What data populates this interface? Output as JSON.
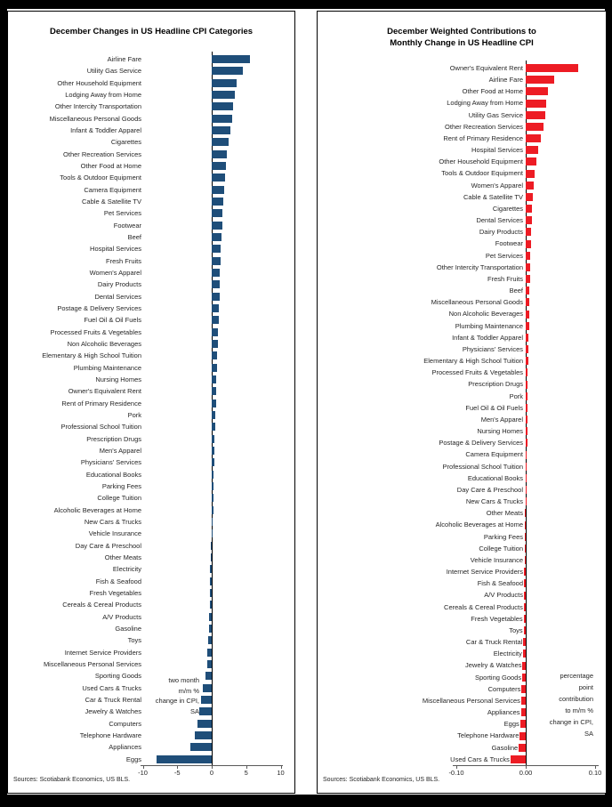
{
  "page": {
    "background_color": "#000000",
    "canvas_color": "#ffffff"
  },
  "chart_data": [
    {
      "type": "bar",
      "orientation": "horizontal",
      "title_lines": [
        "December Changes in US Headline CPI Categories"
      ],
      "bar_color": "#1f4e79",
      "xlim": [
        -10,
        10
      ],
      "x_ticks": [
        {
          "value": -10,
          "label": "-10"
        },
        {
          "value": -5,
          "label": "-5"
        },
        {
          "value": 0,
          "label": "0"
        },
        {
          "value": 5,
          "label": "5"
        },
        {
          "value": 10,
          "label": "10"
        }
      ],
      "annotation_lines": [
        "two month",
        "m/m %",
        "change in CPI,",
        "SA"
      ],
      "sources": "Sources: Scotiabank Economics, US BLS.",
      "categories": [
        "Airline Fare",
        "Utility Gas Service",
        "Other Household Equipment",
        "Lodging Away from Home",
        "Other Intercity Transportation",
        "Miscellaneous Personal Goods",
        "Infant & Toddler Apparel",
        "Cigarettes",
        "Other Recreation Services",
        "Other Food at Home",
        "Tools & Outdoor Equipment",
        "Camera Equipment",
        "Cable & Satellite TV",
        "Pet Services",
        "Footwear",
        "Beef",
        "Hospital Services",
        "Fresh Fruits",
        "Women's Apparel",
        "Dairy Products",
        "Dental Services",
        "Postage & Delivery Services",
        "Fuel Oil & Oil Fuels",
        "Processed Fruits & Vegetables",
        "Non Alcoholic Beverages",
        "Elementary & High School Tuition",
        "Plumbing Maintenance",
        "Nursing Homes",
        "Owner's Equivalent Rent",
        "Rent of Primary Residence",
        "Pork",
        "Professional School Tuition",
        "Prescription Drugs",
        "Men's Apparel",
        "Physicians' Services",
        "Educational Books",
        "Parking Fees",
        "College Tuition",
        "Alcoholic Beverages at Home",
        "New Cars & Trucks",
        "Vehicle Insurance",
        "Day Care & Preschool",
        "Other Meats",
        "Electricity",
        "Fish & Seafood",
        "Fresh Vegetables",
        "Cereals & Cereal Products",
        "A/V Products",
        "Gasoline",
        "Toys",
        "Internet Service Providers",
        "Miscellaneous Personal Services",
        "Sporting Goods",
        "Used Cars & Trucks",
        "Car & Truck Rental",
        "Jewelry & Watches",
        "Computers",
        "Telephone Hardware",
        "Appliances",
        "Eggs"
      ],
      "values": [
        5.5,
        4.5,
        3.6,
        3.3,
        3.1,
        3.0,
        2.7,
        2.4,
        2.2,
        2.0,
        1.9,
        1.8,
        1.7,
        1.55,
        1.5,
        1.4,
        1.35,
        1.3,
        1.2,
        1.15,
        1.1,
        1.05,
        1.0,
        0.95,
        0.9,
        0.8,
        0.75,
        0.7,
        0.65,
        0.6,
        0.55,
        0.5,
        0.45,
        0.4,
        0.35,
        0.3,
        0.28,
        0.25,
        0.2,
        0.15,
        0.1,
        -0.1,
        -0.15,
        -0.2,
        -0.25,
        -0.28,
        -0.3,
        -0.4,
        -0.45,
        -0.5,
        -0.6,
        -0.7,
        -0.9,
        -1.3,
        -1.5,
        -1.8,
        -2.1,
        -2.5,
        -3.1,
        -8.0
      ]
    },
    {
      "type": "bar",
      "orientation": "horizontal",
      "title_lines": [
        "December Weighted Contributions to",
        "Monthly Change in US Headline CPI"
      ],
      "bar_color": "#ed1c24",
      "xlim": [
        -0.1,
        0.1
      ],
      "x_ticks": [
        {
          "value": -0.1,
          "label": "-0.10"
        },
        {
          "value": 0,
          "label": "0.00"
        },
        {
          "value": 0.1,
          "label": "0.10"
        }
      ],
      "annotation_lines": [
        "percentage",
        "point",
        "contribution",
        "to m/m %",
        "change in CPI,",
        "SA"
      ],
      "sources": "Sources: Scotiabank Economics, US BLS.",
      "categories": [
        "Owner's Equivalent Rent",
        "Airline Fare",
        "Other Food at Home",
        "Lodging Away from Home",
        "Utility Gas Service",
        "Other Recreation Services",
        "Rent of Primary Residence",
        "Hospital Services",
        "Other Household Equipment",
        "Tools & Outdoor Equipment",
        "Women's Apparel",
        "Cable & Satellite TV",
        "Cigarettes",
        "Dental Services",
        "Dairy Products",
        "Footwear",
        "Pet Services",
        "Other Intercity Transportation",
        "Fresh Fruits",
        "Beef",
        "Miscellaneous Personal Goods",
        "Non Alcoholic Beverages",
        "Plumbing Maintenance",
        "Infant & Toddler Apparel",
        "Physicians' Services",
        "Elementary & High School Tuition",
        "Processed Fruits & Vegetables",
        "Prescription Drugs",
        "Pork",
        "Fuel Oil & Oil Fuels",
        "Men's Apparel",
        "Nursing Homes",
        "Postage & Delivery Services",
        "Camera Equipment",
        "Professional School Tuition",
        "Educational Books",
        "Day Care & Preschool",
        "New Cars & Trucks",
        "Other Meats",
        "Alcoholic Beverages at Home",
        "Parking Fees",
        "College Tuition",
        "Vehicle Insurance",
        "Internet Service Providers",
        "Fish & Seafood",
        "A/V Products",
        "Cereals & Cereal Products",
        "Fresh Vegetables",
        "Toys",
        "Car & Truck Rental",
        "Electricity",
        "Jewelry & Watches",
        "Sporting Goods",
        "Computers",
        "Miscellaneous Personal Services",
        "Appliances",
        "Eggs",
        "Telephone Hardware",
        "Gasoline",
        "Used Cars & Trucks"
      ],
      "values": [
        0.075,
        0.041,
        0.032,
        0.029,
        0.028,
        0.026,
        0.022,
        0.018,
        0.015,
        0.013,
        0.011,
        0.01,
        0.009,
        0.0085,
        0.008,
        0.0075,
        0.007,
        0.0065,
        0.006,
        0.0055,
        0.005,
        0.0048,
        0.0045,
        0.004,
        0.004,
        0.0035,
        0.003,
        0.003,
        0.0028,
        0.0025,
        0.0022,
        0.002,
        0.002,
        0.0018,
        0.0015,
        0.001,
        0.001,
        0.0008,
        -0.0008,
        -0.001,
        -0.001,
        -0.0012,
        -0.0015,
        -0.002,
        -0.002,
        -0.0025,
        -0.0028,
        -0.003,
        -0.003,
        -0.0035,
        -0.004,
        -0.0045,
        -0.005,
        -0.006,
        -0.0065,
        -0.007,
        -0.008,
        -0.0085,
        -0.01,
        -0.022
      ]
    }
  ]
}
